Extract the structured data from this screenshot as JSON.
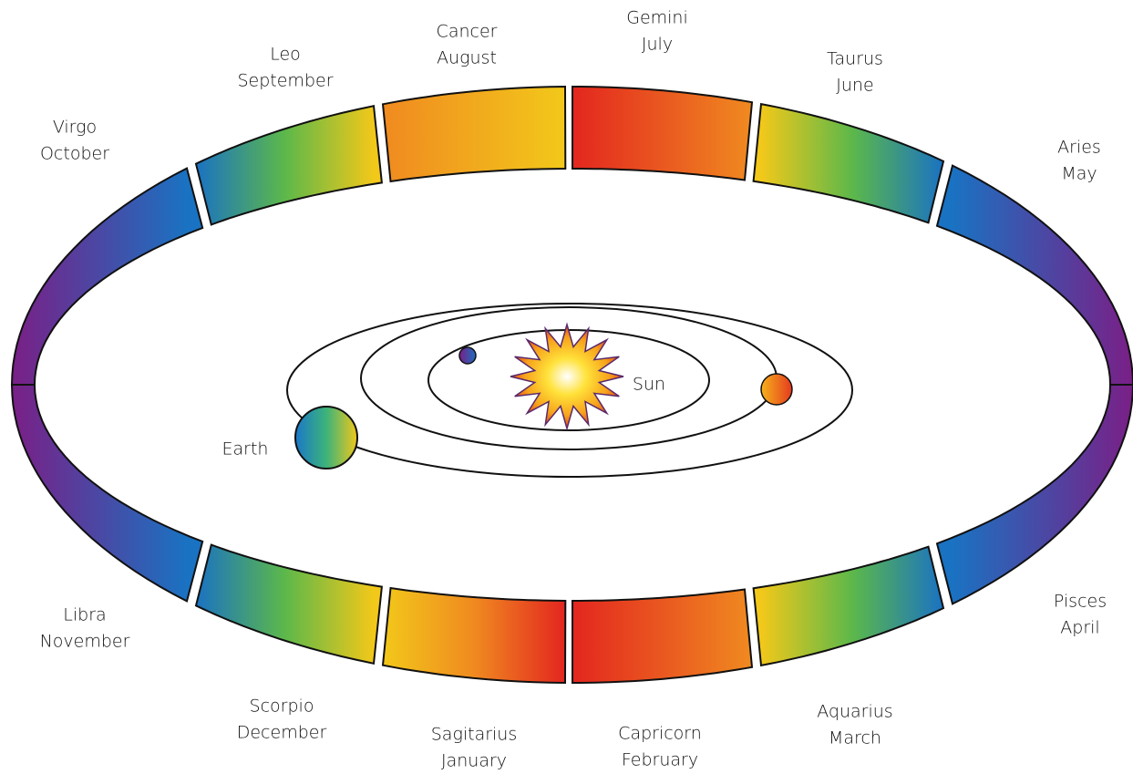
{
  "signs": [
    {
      "name": "Virgo",
      "month": "October"
    },
    {
      "name": "Leo",
      "month": "September"
    },
    {
      "name": "Cancer",
      "month": "August"
    },
    {
      "name": "Gemini",
      "month": "July"
    },
    {
      "name": "Taurus",
      "month": "June"
    },
    {
      "name": "Aries",
      "month": "May"
    },
    {
      "name": "Libra",
      "month": "November"
    },
    {
      "name": "Scorpio",
      "month": "December"
    },
    {
      "name": "Sagitarius",
      "month": "January"
    },
    {
      "name": "Capricorn",
      "month": "February"
    },
    {
      "name": "Aquarius",
      "month": "March"
    },
    {
      "name": "Pisces",
      "month": "April"
    }
  ],
  "bodies": {
    "sun": "Sun",
    "earth": "Earth"
  }
}
